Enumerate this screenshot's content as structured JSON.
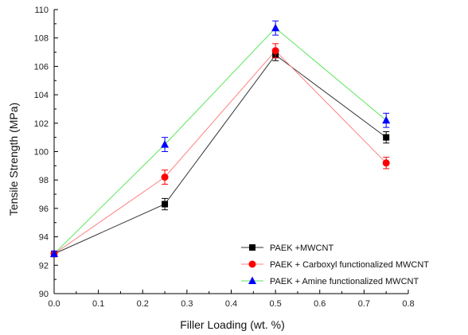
{
  "chart_data": {
    "type": "line",
    "xlabel": "Filler Loading (wt. %)",
    "ylabel": "Tensile Strength (MPa)",
    "xlim": [
      0.0,
      0.8
    ],
    "ylim": [
      90,
      110
    ],
    "xticks": [
      "0.0",
      "0.1",
      "0.2",
      "0.3",
      "0.4",
      "0.5",
      "0.6",
      "0.7",
      "0.8"
    ],
    "yticks": [
      "90",
      "92",
      "94",
      "96",
      "98",
      "100",
      "102",
      "104",
      "106",
      "108",
      "110"
    ],
    "legend_position": "bottom-right",
    "grid": false,
    "error_bars": true,
    "series": [
      {
        "name": "PAEK +MWCNT",
        "color": "#000000",
        "marker": "square",
        "x": [
          0.0,
          0.25,
          0.5,
          0.75
        ],
        "y": [
          92.8,
          96.3,
          106.8,
          101.0
        ],
        "err": [
          0.2,
          0.4,
          0.4,
          0.4
        ]
      },
      {
        "name": "PAEK + Carboxyl functionalized MWCNT",
        "color": "#ff0000",
        "marker": "circle",
        "x": [
          0.0,
          0.25,
          0.5,
          0.75
        ],
        "y": [
          92.8,
          98.2,
          107.1,
          99.2
        ],
        "err": [
          0.2,
          0.5,
          0.5,
          0.4
        ]
      },
      {
        "name": "PAEK + Amine functionalized MWCNT",
        "color": "#0000ff",
        "marker": "triangle",
        "x": [
          0.0,
          0.25,
          0.5,
          0.75
        ],
        "y": [
          92.8,
          100.5,
          108.7,
          102.2
        ],
        "err": [
          0.2,
          0.5,
          0.5,
          0.5
        ],
        "line_color": "#5ce65c"
      }
    ]
  }
}
